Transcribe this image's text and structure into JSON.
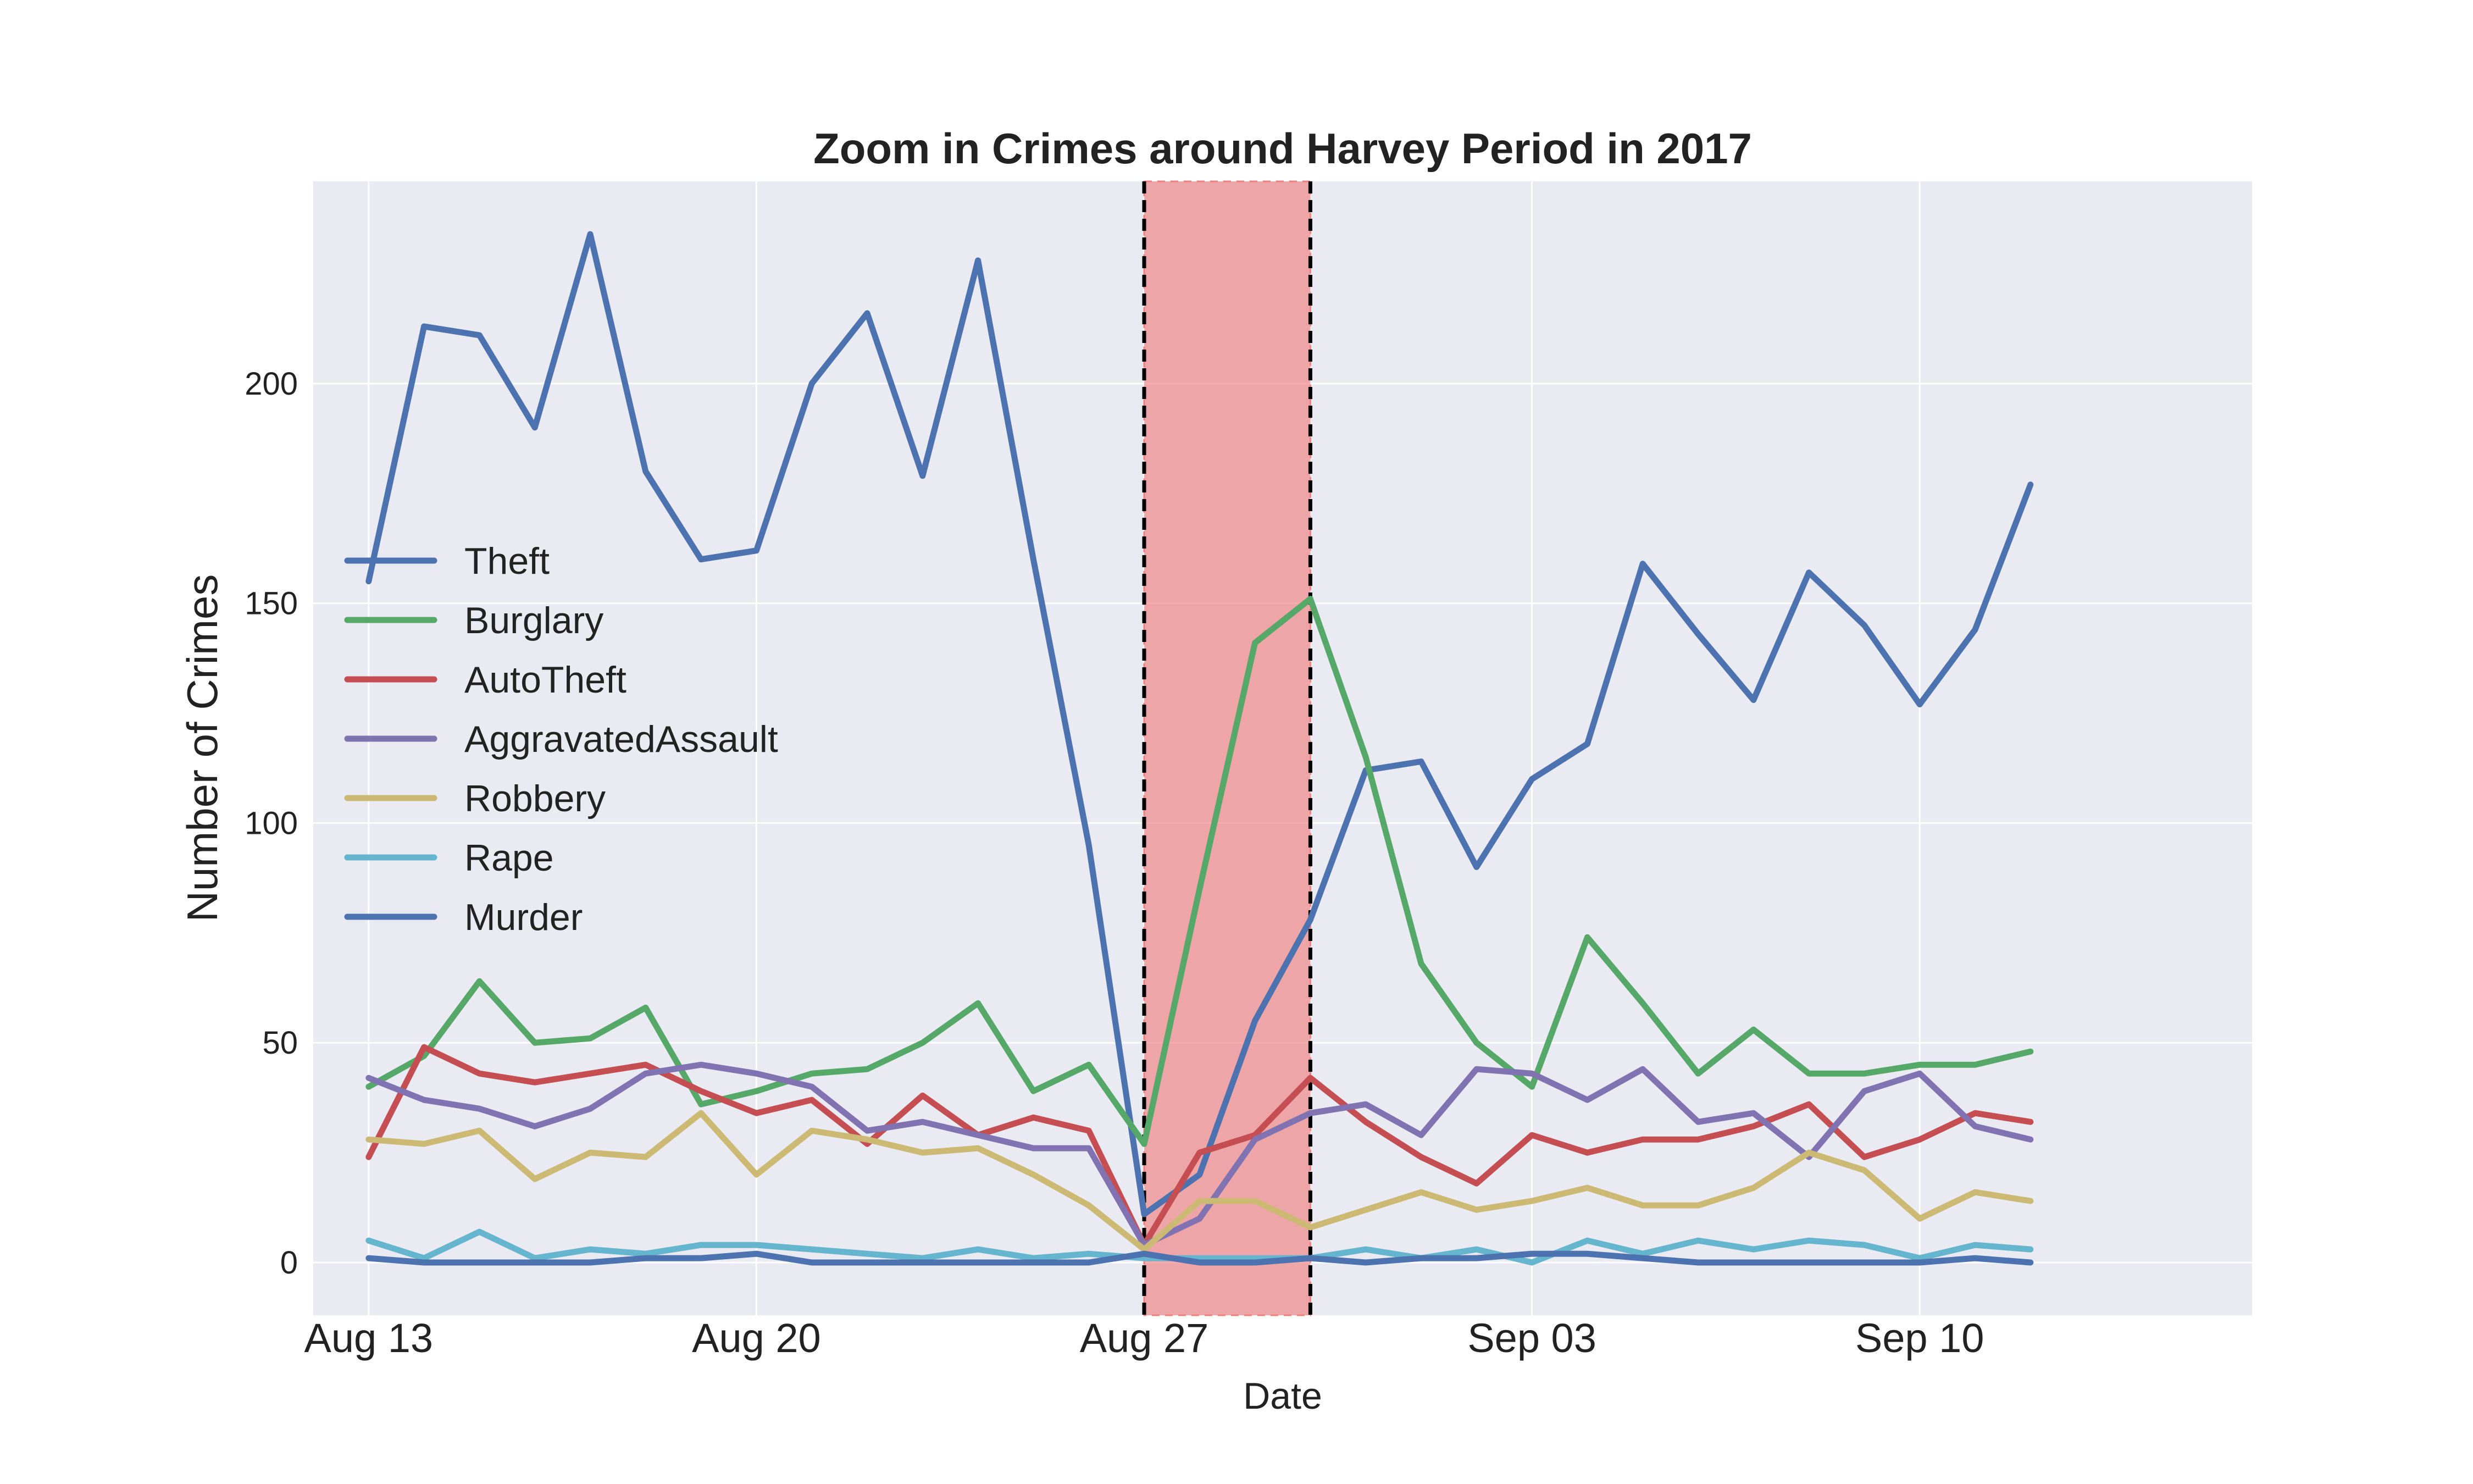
{
  "chart_data": {
    "type": "line",
    "title": "Zoom in Crimes around Harvey Period in 2017",
    "xlabel": "Date",
    "ylabel": "Number of Crimes",
    "x_start": "2017-08-13",
    "x_end": "2017-09-12",
    "xlim": [
      "2017-08-12",
      "2017-09-16"
    ],
    "ylim": [
      -12,
      246
    ],
    "yticks": [
      0,
      50,
      100,
      150,
      200
    ],
    "xticks": [
      {
        "date": "2017-08-13",
        "label": "Aug 13"
      },
      {
        "date": "2017-08-20",
        "label": "Aug 20"
      },
      {
        "date": "2017-08-27",
        "label": "Aug 27"
      },
      {
        "date": "2017-09-03",
        "label": "Sep 03"
      },
      {
        "date": "2017-09-10",
        "label": "Sep 10"
      }
    ],
    "grid": true,
    "legend_position": "center-left",
    "highlight": {
      "start": "2017-08-27",
      "end": "2017-08-30",
      "color": "#f08080"
    },
    "series": [
      {
        "name": "Theft",
        "color": "#4c72b0",
        "values": [
          155,
          213,
          211,
          190,
          234,
          180,
          160,
          162,
          200,
          216,
          179,
          228,
          160,
          95,
          11,
          20,
          55,
          78,
          112,
          114,
          90,
          110,
          118,
          159,
          143,
          128,
          157,
          145,
          127,
          144,
          177
        ]
      },
      {
        "name": "Burglary",
        "color": "#55a868",
        "values": [
          40,
          47,
          64,
          50,
          51,
          58,
          36,
          39,
          43,
          44,
          50,
          59,
          39,
          45,
          27,
          85,
          141,
          151,
          115,
          68,
          50,
          40,
          74,
          59,
          43,
          53,
          43,
          43,
          45,
          45,
          48
        ]
      },
      {
        "name": "AutoTheft",
        "color": "#c44e52",
        "values": [
          24,
          49,
          43,
          41,
          43,
          45,
          39,
          34,
          37,
          27,
          38,
          29,
          33,
          30,
          4,
          25,
          29,
          42,
          32,
          24,
          18,
          29,
          25,
          28,
          28,
          31,
          36,
          24,
          28,
          34,
          32
        ]
      },
      {
        "name": "AggravatedAssault",
        "color": "#8172b2",
        "values": [
          42,
          37,
          35,
          31,
          35,
          43,
          45,
          43,
          40,
          30,
          32,
          29,
          26,
          26,
          4,
          10,
          28,
          34,
          36,
          29,
          44,
          43,
          37,
          44,
          32,
          34,
          24,
          39,
          43,
          31,
          28
        ]
      },
      {
        "name": "Robbery",
        "color": "#ccb974",
        "values": [
          28,
          27,
          30,
          19,
          25,
          24,
          34,
          20,
          30,
          28,
          25,
          26,
          20,
          13,
          3,
          14,
          14,
          8,
          12,
          16,
          12,
          14,
          17,
          13,
          13,
          17,
          25,
          21,
          10,
          16,
          14
        ]
      },
      {
        "name": "Rape",
        "color": "#64b5cd",
        "values": [
          5,
          1,
          7,
          1,
          3,
          2,
          4,
          4,
          3,
          2,
          1,
          3,
          1,
          2,
          1,
          1,
          1,
          1,
          3,
          1,
          3,
          0,
          5,
          2,
          5,
          3,
          5,
          4,
          1,
          4,
          3
        ]
      },
      {
        "name": "Murder",
        "color": "#4c72b0",
        "values": [
          1,
          0,
          0,
          0,
          0,
          1,
          1,
          2,
          0,
          0,
          0,
          0,
          0,
          0,
          2,
          0,
          0,
          1,
          0,
          1,
          1,
          2,
          2,
          1,
          0,
          0,
          0,
          0,
          0,
          1,
          0
        ]
      }
    ]
  }
}
